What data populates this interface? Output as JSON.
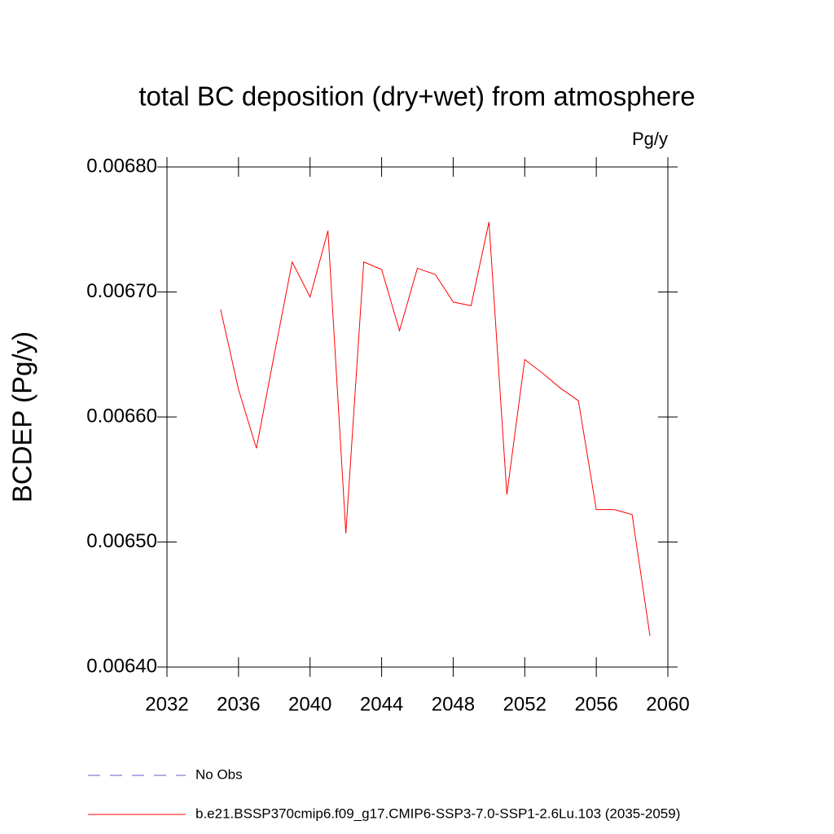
{
  "chart_data": {
    "type": "line",
    "title": "total BC deposition (dry+wet) from atmosphere",
    "units": "Pg/y",
    "y_label": "BCDEP  (Pg/y)",
    "x": [
      2035,
      2036,
      2037,
      2038,
      2039,
      2040,
      2041,
      2042,
      2043,
      2044,
      2045,
      2046,
      2047,
      2048,
      2049,
      2050,
      2051,
      2052,
      2053,
      2054,
      2055,
      2056,
      2057,
      2058,
      2059
    ],
    "series": [
      {
        "name": "No Obs",
        "color": "#6a5acd",
        "dash": true,
        "values": [
          null,
          null,
          null,
          null,
          null,
          null,
          null,
          null,
          null,
          null,
          null,
          null,
          null,
          null,
          null,
          null,
          null,
          null,
          null,
          null,
          null,
          null,
          null,
          null,
          null
        ]
      },
      {
        "name": "b.e21.BSSP370cmip6.f09_g17.CMIP6-SSP3-7.0-SSP1-2.6Lu.103 (2035-2059)",
        "color": "#ff0000",
        "dash": false,
        "values": [
          0.006686,
          0.006622,
          0.006575,
          0.00665,
          0.006724,
          0.006696,
          0.006749,
          0.006507,
          0.006724,
          0.006718,
          0.006669,
          0.006719,
          0.006714,
          0.006692,
          0.006689,
          0.006756,
          0.006538,
          0.006646,
          0.006635,
          0.006623,
          0.006613,
          0.006526,
          0.006526,
          0.006522,
          0.006425
        ]
      }
    ],
    "xlim": [
      2032,
      2060
    ],
    "xticks": [
      2032,
      2036,
      2040,
      2044,
      2048,
      2052,
      2056,
      2060
    ],
    "ylim": [
      0.0064,
      0.0068
    ],
    "yticks": [
      {
        "value": 0.0064,
        "label": "0.00640"
      },
      {
        "value": 0.0065,
        "label": "0.00650"
      },
      {
        "value": 0.0066,
        "label": "0.00660"
      },
      {
        "value": 0.0067,
        "label": "0.00670"
      },
      {
        "value": 0.0068,
        "label": "0.00680"
      }
    ],
    "grid": false
  }
}
